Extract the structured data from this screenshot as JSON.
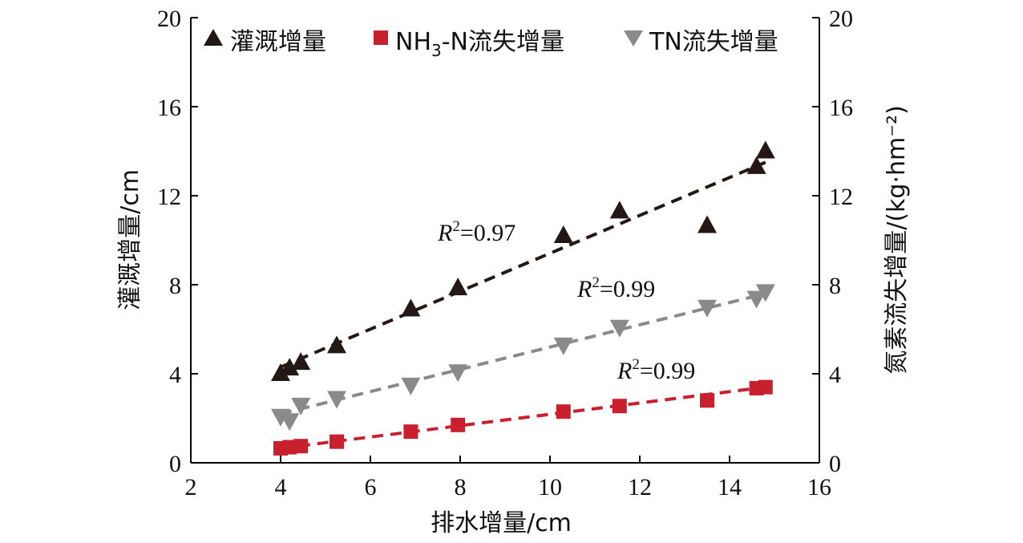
{
  "chart_data": {
    "type": "scatter",
    "title": "",
    "xlabel": "排水增量/cm",
    "ylabel_left": "灌溉增量/cm",
    "ylabel_right": "氮素流失增量/(kg·hm⁻²)",
    "xlim": [
      2,
      16
    ],
    "ylim_left": [
      0,
      20
    ],
    "ylim_right": [
      0,
      20
    ],
    "x_ticks": [
      "2",
      "4",
      "6",
      "8",
      "10",
      "12",
      "14",
      "16"
    ],
    "y_ticks_left": [
      "0",
      "4",
      "8",
      "12",
      "16",
      "20"
    ],
    "y_ticks_right": [
      "0",
      "4",
      "8",
      "12",
      "16",
      "20"
    ],
    "legend_position": "top",
    "series": [
      {
        "name": "灌溉增量",
        "marker": "triangle-up",
        "color": "#231815",
        "axis": "left",
        "points": [
          [
            4.0,
            4.0
          ],
          [
            4.2,
            4.25
          ],
          [
            4.45,
            4.5
          ],
          [
            5.25,
            5.25
          ],
          [
            6.9,
            6.9
          ],
          [
            7.95,
            7.85
          ],
          [
            10.3,
            10.2
          ],
          [
            11.55,
            11.3
          ],
          [
            13.5,
            10.65
          ],
          [
            14.6,
            13.3
          ],
          [
            14.8,
            14.0
          ]
        ],
        "fit": {
          "x": [
            4.0,
            14.8
          ],
          "y": [
            4.3,
            13.5
          ],
          "r2_label": "R²=0.97"
        }
      },
      {
        "name": "NH₃-N流失增量",
        "marker": "square",
        "color": "#c8202d",
        "axis": "right",
        "points": [
          [
            4.0,
            0.65
          ],
          [
            4.2,
            0.7
          ],
          [
            4.45,
            0.75
          ],
          [
            5.25,
            0.95
          ],
          [
            6.9,
            1.4
          ],
          [
            7.95,
            1.7
          ],
          [
            10.3,
            2.3
          ],
          [
            11.55,
            2.55
          ],
          [
            13.5,
            2.8
          ],
          [
            14.6,
            3.35
          ],
          [
            14.8,
            3.4
          ]
        ],
        "fit": {
          "x": [
            4.0,
            14.8
          ],
          "y": [
            0.65,
            3.4
          ],
          "r2_label": "R²=0.99"
        }
      },
      {
        "name": "TN流失增量",
        "marker": "triangle-down",
        "color": "#8a8a8a",
        "axis": "right",
        "points": [
          [
            4.0,
            2.1
          ],
          [
            4.2,
            1.9
          ],
          [
            4.45,
            2.6
          ],
          [
            5.25,
            2.9
          ],
          [
            6.9,
            3.5
          ],
          [
            7.95,
            4.1
          ],
          [
            10.3,
            5.3
          ],
          [
            11.55,
            6.1
          ],
          [
            13.5,
            7.0
          ],
          [
            14.6,
            7.4
          ],
          [
            14.8,
            7.7
          ]
        ],
        "fit": {
          "x": [
            4.0,
            14.8
          ],
          "y": [
            2.2,
            7.6
          ],
          "r2_label": "R²=0.99"
        }
      }
    ]
  }
}
